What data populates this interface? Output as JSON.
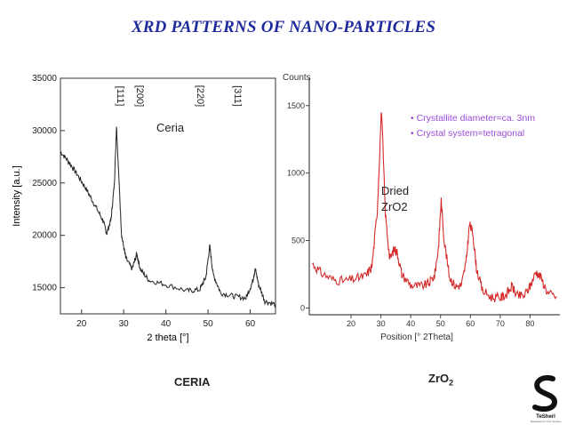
{
  "slide": {
    "title": "XRD PATTERNS OF NANO-PARTICLES",
    "ceria_overlay": "Ceria",
    "zro2_overlay_line1": "Dried",
    "zro2_overlay_line2": "ZrO2",
    "caption_ceria": "CERIA",
    "caption_zro2_base": "ZrO",
    "caption_zro2_sub": "2",
    "logo_text": "TeSherl",
    "logo_tagline": "Dedicated to Your Service"
  },
  "chart_data": [
    {
      "type": "line",
      "xlabel": "2 theta [°]",
      "ylabel": "Intensity [a.u.]",
      "xlim": [
        15,
        66
      ],
      "ylim": [
        12500,
        35000
      ],
      "xticks": [
        20,
        30,
        40,
        50,
        60
      ],
      "yticks": [
        15000,
        20000,
        25000,
        30000,
        35000
      ],
      "grid": false,
      "color": "#222222",
      "peak_labels": [
        {
          "label": "[111]",
          "x": 28.5
        },
        {
          "label": "[200]",
          "x": 33.1
        },
        {
          "label": "[220]",
          "x": 47.5
        },
        {
          "label": "[311]",
          "x": 56.3
        }
      ],
      "points": [
        [
          15,
          28000
        ],
        [
          17,
          27000
        ],
        [
          19,
          25800
        ],
        [
          21,
          24500
        ],
        [
          23,
          23000
        ],
        [
          25,
          21500
        ],
        [
          26,
          20200
        ],
        [
          27,
          21500
        ],
        [
          27.8,
          25000
        ],
        [
          28.3,
          30500
        ],
        [
          28.8,
          26000
        ],
        [
          29.5,
          20000
        ],
        [
          30.5,
          17800
        ],
        [
          32,
          16800
        ],
        [
          33.1,
          18200
        ],
        [
          34,
          16700
        ],
        [
          36,
          15700
        ],
        [
          40,
          15300
        ],
        [
          45,
          14700
        ],
        [
          48,
          14800
        ],
        [
          49.5,
          16000
        ],
        [
          50.4,
          19000
        ],
        [
          51.2,
          16300
        ],
        [
          53,
          14500
        ],
        [
          56,
          14200
        ],
        [
          59,
          14000
        ],
        [
          60.5,
          15500
        ],
        [
          61.2,
          16800
        ],
        [
          62,
          15300
        ],
        [
          63.5,
          13700
        ],
        [
          66,
          13400
        ]
      ]
    },
    {
      "type": "line",
      "title": "Counts",
      "xlabel": "Position [° 2Theta]",
      "xlim": [
        6,
        90
      ],
      "ylim": [
        -50,
        1650
      ],
      "xticks": [
        20,
        30,
        40,
        50,
        60,
        70,
        80
      ],
      "yticks": [
        0,
        500,
        1000,
        1500
      ],
      "grid": false,
      "color": "#d42a2a",
      "legend": [
        "Crystallite diameter=ca. 3nm",
        "Crystal system=tetragonal"
      ],
      "legend_color": "#9b4dd6",
      "points": [
        [
          7,
          330
        ],
        [
          10,
          260
        ],
        [
          14,
          210
        ],
        [
          18,
          200
        ],
        [
          22,
          220
        ],
        [
          25,
          240
        ],
        [
          27,
          310
        ],
        [
          28.8,
          720
        ],
        [
          30.2,
          1480
        ],
        [
          31.5,
          700
        ],
        [
          33,
          360
        ],
        [
          34.5,
          440
        ],
        [
          35.5,
          410
        ],
        [
          37,
          250
        ],
        [
          40,
          170
        ],
        [
          43,
          160
        ],
        [
          46,
          180
        ],
        [
          48,
          240
        ],
        [
          49.3,
          450
        ],
        [
          50.2,
          800
        ],
        [
          51.2,
          500
        ],
        [
          53,
          230
        ],
        [
          55,
          160
        ],
        [
          57,
          170
        ],
        [
          58.5,
          330
        ],
        [
          59.7,
          620
        ],
        [
          60.8,
          560
        ],
        [
          62,
          300
        ],
        [
          64,
          130
        ],
        [
          67,
          80
        ],
        [
          70,
          75
        ],
        [
          72,
          100
        ],
        [
          74,
          160
        ],
        [
          75.5,
          90
        ],
        [
          78,
          90
        ],
        [
          80,
          160
        ],
        [
          82,
          270
        ],
        [
          83.5,
          230
        ],
        [
          86,
          110
        ],
        [
          89,
          80
        ]
      ]
    }
  ]
}
